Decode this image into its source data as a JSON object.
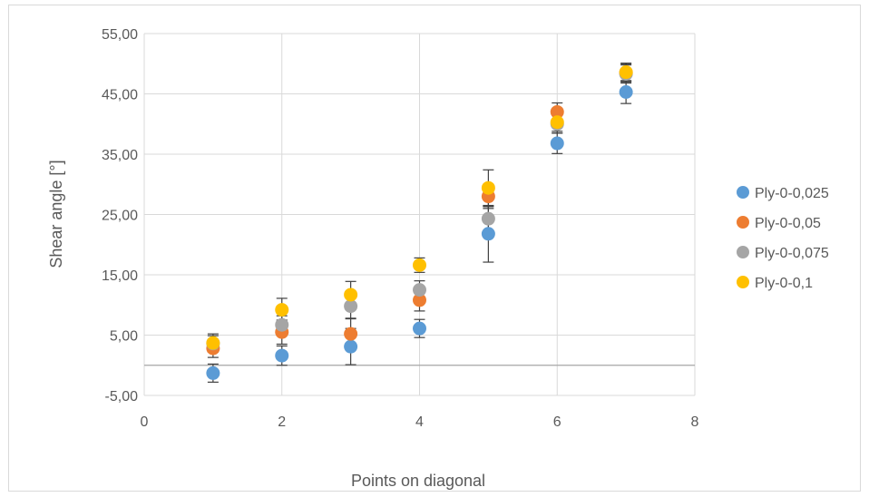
{
  "chart_data": {
    "type": "scatter",
    "title": "",
    "xlabel": "Points on diagonal",
    "ylabel": "Shear angle [°]",
    "xlim": [
      0,
      8
    ],
    "ylim": [
      -5,
      55
    ],
    "x_ticks": [
      "0",
      "2",
      "4",
      "6",
      "8"
    ],
    "x_tick_values": [
      0,
      2,
      4,
      6,
      8
    ],
    "y_ticks": [
      "-5,00",
      "5,00",
      "15,00",
      "25,00",
      "35,00",
      "45,00",
      "55,00"
    ],
    "y_tick_values": [
      -5,
      5,
      15,
      25,
      35,
      45,
      55
    ],
    "grid": true,
    "legend_position": "right",
    "series": [
      {
        "name": "Ply-0-0,025",
        "color": "#5b9bd5",
        "x": [
          1,
          2,
          3,
          4,
          5,
          6,
          7
        ],
        "y": [
          -1.3,
          1.6,
          3.1,
          6.1,
          21.8,
          36.8,
          45.3
        ],
        "error": [
          1.5,
          1.6,
          3.0,
          1.5,
          4.7,
          1.7,
          1.9
        ]
      },
      {
        "name": "Ply-0-0,05",
        "color": "#ed7d31",
        "x": [
          1,
          2,
          3,
          4,
          5,
          6,
          7
        ],
        "y": [
          2.8,
          5.5,
          5.2,
          10.8,
          28.0,
          42.0,
          48.5
        ],
        "error": [
          1.5,
          2.0,
          2.5,
          1.8,
          2.0,
          1.5,
          1.5
        ]
      },
      {
        "name": "Ply-0-0,075",
        "color": "#a5a5a5",
        "x": [
          1,
          2,
          3,
          4,
          5,
          6,
          7
        ],
        "y": [
          3.6,
          6.7,
          9.8,
          12.5,
          24.3,
          40.0,
          48.3
        ],
        "error": [
          1.3,
          1.5,
          2.0,
          1.5,
          2.0,
          1.5,
          1.5
        ]
      },
      {
        "name": "Ply-0-0,1",
        "color": "#ffc000",
        "x": [
          1,
          2,
          3,
          4,
          5,
          6,
          7
        ],
        "y": [
          3.7,
          9.2,
          11.7,
          16.6,
          29.4,
          40.3,
          48.6
        ],
        "error": [
          1.5,
          1.9,
          2.2,
          1.2,
          3.0,
          1.5,
          1.5
        ]
      }
    ]
  }
}
